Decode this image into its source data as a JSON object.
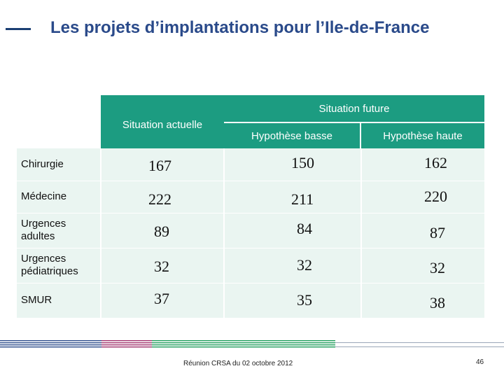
{
  "slide": {
    "title": "Les projets d’implantations pour l’Ile-de-France",
    "footer": "Réunion CRSA du 02 octobre 2012",
    "page_number": "46"
  },
  "table": {
    "header_current": "Situation actuelle",
    "header_future": "Situation future",
    "header_low": "Hypothèse basse",
    "header_high": "Hypothèse haute",
    "rows": [
      {
        "label": "Chirurgie",
        "current": "167",
        "low": "150",
        "high": "162"
      },
      {
        "label": "Médecine",
        "current": "222",
        "low": "211",
        "high": "220"
      },
      {
        "label": "Urgences adultes",
        "current": "89",
        "low": "84",
        "high": "87"
      },
      {
        "label": "Urgences pédiatriques",
        "current": "32",
        "low": "32",
        "high": "32"
      },
      {
        "label": "SMUR",
        "current": "37",
        "low": "35",
        "high": "38"
      }
    ]
  },
  "colors": {
    "title": "#2a4a8a",
    "header": "#1c9c81",
    "row_band": "#eaf5f1"
  }
}
